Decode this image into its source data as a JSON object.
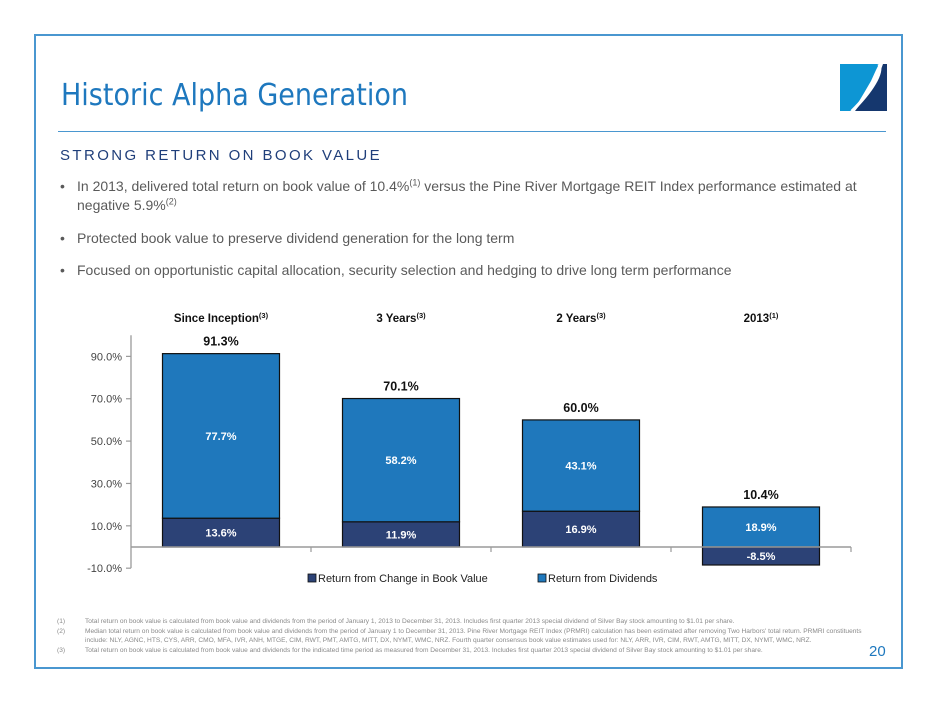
{
  "header": {
    "title": "Historic Alpha Generation",
    "logo_icon": "brand-logo-icon"
  },
  "subtitle": "STRONG RETURN ON BOOK VALUE",
  "bullets": [
    {
      "parts": [
        {
          "text": "In 2013, delivered total return on book value of 10.4%"
        },
        {
          "sup": "(1)"
        },
        {
          "text": " versus the Pine River Mortgage REIT Index performance estimated at negative 5.9%"
        },
        {
          "sup": "(2)"
        }
      ]
    },
    {
      "parts": [
        {
          "text": "Protected book value to preserve dividend generation for the long term"
        }
      ]
    },
    {
      "parts": [
        {
          "text": "Focused on opportunistic capital allocation, security selection and hedging to drive long term performance"
        }
      ]
    }
  ],
  "colors": {
    "frame": "#4a97d0",
    "title": "#1e78be",
    "book_value": "#2c4276",
    "dividends": "#1f78bc",
    "axis": "#9a9a9a"
  },
  "chart_data": {
    "type": "bar",
    "stacked": true,
    "title": "",
    "xlabel": "",
    "ylabel": "",
    "categories": [
      "Since Inception",
      "3 Years",
      "2 Years",
      "2013"
    ],
    "category_footnotes": [
      "(3)",
      "(3)",
      "(3)",
      "(1)"
    ],
    "series": [
      {
        "name": "Return from Change in Book Value",
        "color": "#2c4276",
        "values": [
          13.6,
          11.9,
          16.9,
          -8.5
        ],
        "labels": [
          "13.6%",
          "11.9%",
          "16.9%",
          "-8.5%"
        ]
      },
      {
        "name": "Return from Dividends",
        "color": "#1f78bc",
        "values": [
          77.7,
          58.2,
          43.1,
          18.9
        ],
        "labels": [
          "77.7%",
          "58.2%",
          "43.1%",
          "18.9%"
        ]
      }
    ],
    "totals": [
      91.3,
      70.1,
      60.0,
      10.4
    ],
    "total_labels": [
      "91.3%",
      "70.1%",
      "60.0%",
      "10.4%"
    ],
    "yticks": [
      -10,
      10,
      30,
      50,
      70,
      90
    ],
    "ytick_labels": [
      "-10.0%",
      "10.0%",
      "30.0%",
      "50.0%",
      "70.0%",
      "90.0%"
    ],
    "ylim": [
      -10,
      100
    ],
    "grid": false,
    "legend": "bottom-center"
  },
  "footnotes": [
    {
      "num": "(1)",
      "text": "Total return on book value is calculated from book value and dividends from the period of January 1, 2013 to December 31, 2013. Includes first quarter 2013 special dividend of Silver Bay stock amounting to $1.01 per share."
    },
    {
      "num": "(2)",
      "text": "Median total return on book value is calculated from book value and dividends from the period of January 1 to December 31, 2013. Pine River Mortgage REIT Index (PRMRI) calculation has been estimated after removing Two Harbors' total return. PRMRI constituents include: NLY, AGNC, HTS, CYS, ARR, CMO, MFA, IVR, ANH, MTGE, CIM, RWT, PMT, AMTG, MITT, DX, NYMT, WMC, NRZ.  Fourth quarter consensus book value estimates used for: NLY, ARR, IVR, CIM, RWT, AMTG, MITT, DX, NYMT, WMC, NRZ."
    },
    {
      "num": "(3)",
      "text": "Total return on book value is calculated from book value and dividends for the indicated time period as measured from December 31, 2013. Includes first quarter 2013 special dividend of Silver Bay stock amounting to $1.01 per share."
    }
  ],
  "page_number": "20"
}
